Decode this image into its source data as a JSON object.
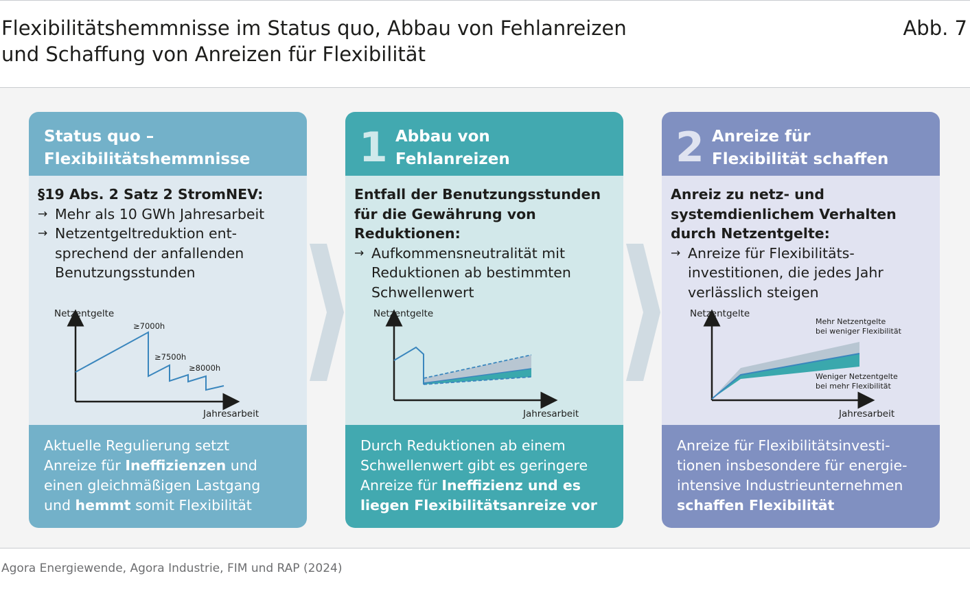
{
  "header": {
    "title_line1": "Flexibilitätshemmnisse im Status quo, Abbau von Fehlanreizen",
    "title_line2": "und Schaffung von Anreizen für Flexibilität",
    "figure_label": "Abb. 7"
  },
  "colors": {
    "col1_dark": "#73b1c9",
    "col1_light": "#dfe9f0",
    "col2_dark": "#42a9b0",
    "col2_light": "#d2e8ea",
    "col3_dark": "#8090c1",
    "col3_light": "#e1e3f1",
    "line_blue": "#3a86bd",
    "teal": "#3aa8ad",
    "grey": "#b8c6d2"
  },
  "columns": [
    {
      "title_line1": "Status quo –",
      "title_line2": "Flexibilitätshemmnisse",
      "heading_lines": [
        "§19 Abs. 2 Satz 2 StromNEV:"
      ],
      "bullets": [
        {
          "arrow": "→",
          "lines": [
            "Mehr als 10 GWh Jahresarbeit"
          ]
        },
        {
          "arrow": "→",
          "lines": [
            "Netzentgeltreduktion ent-",
            "sprechend der anfallenden",
            "Benutzungsstunden"
          ]
        }
      ],
      "chart": {
        "y_label": "Netzentgelte",
        "x_label": "Jahresarbeit",
        "thresholds": [
          "≥7000h",
          "≥7500h",
          "≥8000h"
        ]
      },
      "footer": {
        "l1": "Aktuelle Regulierung setzt",
        "l2a": "Anreize für ",
        "l2b": "Ineffizienzen",
        "l2c": " und",
        "l3": "einen gleichmäßigen Lastgang",
        "l4a": "und ",
        "l4b": "hemmt",
        "l4c": " somit Flexibilität"
      }
    },
    {
      "number": "1",
      "title_line1": "Abbau von",
      "title_line2": "Fehlanreizen",
      "heading_lines": [
        "Entfall der Benutzungsstunden",
        "für die Gewährung von",
        "Reduktionen:"
      ],
      "bullets": [
        {
          "arrow": "→",
          "lines": [
            "Aufkommensneutralität mit",
            "Reduktionen ab bestimmten",
            "Schwellenwert"
          ]
        }
      ],
      "chart": {
        "y_label": "Netzentgelte",
        "x_label": "Jahresarbeit"
      },
      "footer": {
        "l1": "Durch Reduktionen ab einem",
        "l2": "Schwellenwert gibt es geringere",
        "l3a": "Anreize für ",
        "l3b": "Ineffizienz und es",
        "l4b": "liegen Flexibilitätsanreize vor"
      }
    },
    {
      "number": "2",
      "title_line1": "Anreize für",
      "title_line2": "Flexibilität schaffen",
      "heading_lines": [
        "Anreiz zu netz- und",
        "systemdienlichem Verhalten",
        "durch Netzentgelte:"
      ],
      "bullets": [
        {
          "arrow": "→",
          "lines": [
            "Anreize für Flexibilitäts-",
            "investitionen, die jedes Jahr",
            "verlässlich steigen"
          ]
        }
      ],
      "chart": {
        "y_label": "Netzentgelte",
        "x_label": "Jahresarbeit",
        "upper_note_l1": "Mehr Netzentgelte",
        "upper_note_l2": "bei weniger Flexibilität",
        "lower_note_l1": "Weniger Netzentgelte",
        "lower_note_l2": "bei mehr Flexibilität"
      },
      "footer": {
        "l1": "Anreize für Flexibilitätsinvesti-",
        "l2": "tionen insbesondere für energie-",
        "l3": "intensive Industrieunternehmen",
        "l4b": "schaffen Flexibilität"
      }
    }
  ],
  "source": "Agora Energiewende, Agora Industrie, FIM und RAP (2024)"
}
